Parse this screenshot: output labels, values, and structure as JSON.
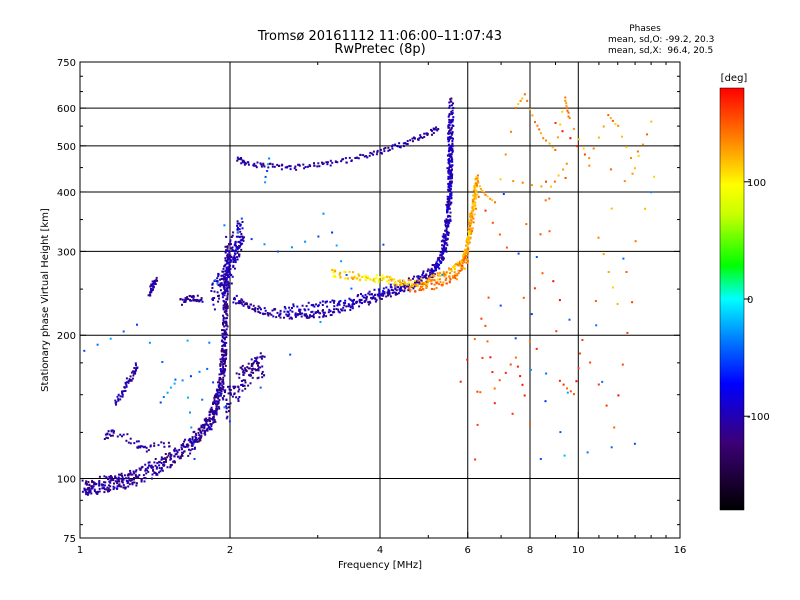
{
  "chart_data": {
    "type": "scatter",
    "title": "Tromsø 20161112 11:06:00–11:07:43",
    "subtitle": "RwPretec (8p)",
    "stats": {
      "heading": "Phases",
      "line_o": "mean, sd,O: -99.2, 20.3",
      "line_x": "mean, sd,X:  96.4, 20.5"
    },
    "xlabel": "Frequency [MHz]",
    "ylabel": "Stationary phase Virtual Height [km]",
    "xscale": "log",
    "yscale": "log",
    "xlim": [
      1,
      16
    ],
    "ylim": [
      75,
      750
    ],
    "x_ticks": [
      1,
      2,
      4,
      6,
      8,
      10,
      16
    ],
    "x_tick_labels": [
      "1",
      "2",
      "4",
      "6",
      "8",
      "10",
      "16"
    ],
    "x_grid": [
      1,
      2,
      4,
      6,
      8,
      10,
      16
    ],
    "y_ticks": [
      75,
      100,
      200,
      300,
      400,
      500,
      600,
      750
    ],
    "y_tick_labels": [
      "75",
      "100",
      "200",
      "300",
      "400",
      "500",
      "600",
      "750"
    ],
    "y_grid": [
      100,
      200,
      300,
      400,
      500,
      600
    ],
    "grid": true,
    "colorbar": {
      "label": "[deg]",
      "min": -180,
      "max": 180,
      "ticks": [
        100,
        0,
        -100
      ],
      "tick_labels": [
        "100",
        "0",
        "-100"
      ]
    },
    "traces": [
      {
        "points": [
          [
            1.02,
            96
          ],
          [
            1.05,
            95
          ],
          [
            1.1,
            97
          ],
          [
            1.15,
            98
          ],
          [
            1.2,
            99
          ],
          [
            1.25,
            99
          ],
          [
            1.3,
            101
          ],
          [
            1.38,
            104
          ],
          [
            1.45,
            107
          ],
          [
            1.52,
            110
          ],
          [
            1.6,
            114
          ],
          [
            1.67,
            118
          ],
          [
            1.72,
            122
          ],
          [
            1.78,
            127
          ],
          [
            1.82,
            132
          ],
          [
            1.86,
            138
          ],
          [
            1.88,
            144
          ],
          [
            1.9,
            150
          ],
          [
            1.92,
            158
          ],
          [
            1.93,
            168
          ],
          [
            1.94,
            178
          ],
          [
            1.95,
            190
          ],
          [
            1.95,
            205
          ],
          [
            1.96,
            222
          ],
          [
            1.96,
            240
          ],
          [
            1.97,
            262
          ],
          [
            1.98,
            285
          ],
          [
            1.98,
            310
          ]
        ],
        "phase": -110,
        "spread": [
          0.012,
          0.04
        ],
        "n": 7
      },
      {
        "points": [
          [
            1.95,
            140
          ],
          [
            2.02,
            150
          ],
          [
            2.1,
            160
          ],
          [
            2.18,
            166
          ],
          [
            2.25,
            170
          ],
          [
            2.32,
            174
          ]
        ],
        "phase": -112,
        "spread": [
          0.02,
          0.06
        ],
        "n": 6
      },
      {
        "points": [
          [
            1.86,
            240
          ],
          [
            1.9,
            252
          ],
          [
            1.95,
            262
          ],
          [
            2.0,
            275
          ],
          [
            2.02,
            290
          ],
          [
            2.05,
            305
          ],
          [
            2.08,
            322
          ],
          [
            2.12,
            335
          ]
        ],
        "phase": -100,
        "spread": [
          0.02,
          0.06
        ],
        "n": 6
      },
      {
        "points": [
          [
            1.13,
            122
          ],
          [
            1.17,
            125
          ],
          [
            1.3,
            118
          ],
          [
            1.35,
            116
          ],
          [
            1.5,
            118
          ]
        ],
        "phase": -110,
        "spread": [
          0.012,
          0.02
        ],
        "n": 3
      },
      {
        "points": [
          [
            1.18,
            145
          ],
          [
            1.22,
            152
          ],
          [
            1.25,
            160
          ],
          [
            1.28,
            166
          ],
          [
            1.3,
            172
          ]
        ],
        "phase": -105,
        "spread": [
          0.008,
          0.015
        ],
        "n": 3
      },
      {
        "points": [
          [
            1.38,
            245
          ],
          [
            1.4,
            255
          ],
          [
            1.42,
            260
          ]
        ],
        "phase": -108,
        "spread": [
          0.006,
          0.015
        ],
        "n": 4
      },
      {
        "points": [
          [
            1.6,
            235
          ],
          [
            1.65,
            238
          ],
          [
            1.7,
            240
          ],
          [
            1.75,
            238
          ]
        ],
        "phase": -110,
        "spread": [
          0.01,
          0.015
        ],
        "n": 3
      },
      {
        "points": [
          [
            2.05,
            238
          ],
          [
            2.15,
            232
          ],
          [
            2.3,
            226
          ],
          [
            2.5,
            222
          ],
          [
            2.7,
            220
          ],
          [
            2.9,
            221
          ],
          [
            3.1,
            223
          ],
          [
            3.4,
            228
          ],
          [
            3.7,
            234
          ],
          [
            4.0,
            241
          ],
          [
            4.3,
            247
          ],
          [
            4.6,
            253
          ],
          [
            4.9,
            260
          ],
          [
            5.1,
            270
          ],
          [
            5.25,
            285
          ],
          [
            5.35,
            305
          ],
          [
            5.45,
            330
          ],
          [
            5.5,
            360
          ],
          [
            5.52,
            390
          ],
          [
            5.53,
            420
          ],
          [
            5.54,
            450
          ],
          [
            5.55,
            480
          ],
          [
            5.55,
            510
          ],
          [
            5.56,
            560
          ],
          [
            5.56,
            620
          ]
        ],
        "phase": -105,
        "spread": [
          0.01,
          0.018
        ],
        "n": 5
      },
      {
        "points": [
          [
            2.6,
            228
          ],
          [
            2.9,
            230
          ],
          [
            3.2,
            233
          ],
          [
            3.5,
            237
          ],
          [
            3.8,
            242
          ],
          [
            4.1,
            248
          ],
          [
            4.4,
            254
          ],
          [
            4.8,
            263
          ],
          [
            5.1,
            272
          ],
          [
            5.3,
            288
          ],
          [
            5.4,
            310
          ],
          [
            5.45,
            340
          ],
          [
            5.5,
            380
          ],
          [
            5.52,
            420
          ],
          [
            5.53,
            470
          ],
          [
            5.54,
            520
          ],
          [
            5.55,
            570
          ]
        ],
        "phase": -95,
        "spread": [
          0.012,
          0.02
        ],
        "n": 4
      },
      {
        "points": [
          [
            3.2,
            270
          ],
          [
            3.5,
            267
          ],
          [
            3.8,
            264
          ],
          [
            4.1,
            262
          ],
          [
            4.4,
            258
          ]
        ],
        "phase": 110,
        "spread": [
          0.01,
          0.018
        ],
        "n": 5
      },
      {
        "points": [
          [
            4.4,
            255
          ],
          [
            4.8,
            258
          ],
          [
            5.1,
            262
          ],
          [
            5.4,
            268
          ],
          [
            5.7,
            278
          ],
          [
            5.9,
            292
          ],
          [
            6.0,
            308
          ],
          [
            6.05,
            325
          ],
          [
            6.1,
            345
          ],
          [
            6.15,
            365
          ],
          [
            6.2,
            385
          ],
          [
            6.22,
            405
          ],
          [
            6.25,
            425
          ]
        ],
        "phase": 125,
        "spread": [
          0.01,
          0.02
        ],
        "n": 5
      },
      {
        "points": [
          [
            4.6,
            250
          ],
          [
            5.0,
            252
          ],
          [
            5.4,
            258
          ],
          [
            5.7,
            266
          ],
          [
            5.9,
            280
          ],
          [
            6.0,
            298
          ]
        ],
        "phase": 140,
        "spread": [
          0.01,
          0.015
        ],
        "n": 4
      },
      {
        "points": [
          [
            2.08,
            470
          ],
          [
            2.15,
            460
          ],
          [
            2.3,
            455
          ],
          [
            2.5,
            452
          ],
          [
            2.7,
            450
          ],
          [
            2.95,
            455
          ],
          [
            3.2,
            460
          ],
          [
            3.5,
            468
          ],
          [
            3.8,
            478
          ],
          [
            4.1,
            490
          ],
          [
            4.4,
            502
          ],
          [
            4.7,
            515
          ],
          [
            5.0,
            530
          ],
          [
            5.2,
            545
          ]
        ],
        "phase": -108,
        "spread": [
          0.008,
          0.012
        ],
        "n": 3
      },
      {
        "points": [
          [
            6.35,
            410
          ],
          [
            6.5,
            395
          ],
          [
            6.8,
            380
          ],
          [
            7.5,
            600
          ],
          [
            7.8,
            640
          ],
          [
            8.2,
            560
          ],
          [
            8.5,
            520
          ],
          [
            9.0,
            490
          ],
          [
            9.4,
            630
          ],
          [
            9.5,
            600
          ],
          [
            9.6,
            570
          ],
          [
            10.5,
            470
          ],
          [
            11.5,
            580
          ],
          [
            12.0,
            550
          ],
          [
            13.0,
            450
          ],
          [
            14.0,
            560
          ],
          [
            11.0,
            320
          ],
          [
            12.0,
            232
          ],
          [
            14.2,
            430
          ],
          [
            9.5,
            460
          ],
          [
            8.8,
            410
          ],
          [
            7.4,
            420
          ]
        ],
        "phase": 130,
        "spread": [
          0.002,
          0.004
        ],
        "n": 1
      },
      {
        "points": [
          [
            6.2,
            110
          ],
          [
            6.5,
            210
          ],
          [
            6.8,
            155
          ],
          [
            7.5,
            180
          ],
          [
            7.8,
            150
          ],
          [
            8.6,
            420
          ],
          [
            9.2,
            160
          ],
          [
            9.8,
            150
          ],
          [
            10.2,
            195
          ],
          [
            11.8,
            128
          ],
          [
            12.8,
            235
          ],
          [
            6.6,
            240
          ],
          [
            5.8,
            160
          ],
          [
            8.0,
            130
          ],
          [
            9.0,
            560
          ],
          [
            10.3,
            480
          ],
          [
            7.2,
            305
          ],
          [
            6.3,
            390
          ]
        ],
        "phase": 160,
        "spread": [
          0.002,
          0.004
        ],
        "n": 1
      },
      {
        "points": [
          [
            1.02,
            185
          ],
          [
            1.3,
            210
          ],
          [
            1.65,
            148
          ],
          [
            1.7,
            110
          ],
          [
            1.95,
            340
          ],
          [
            2.5,
            300
          ],
          [
            3.2,
            330
          ],
          [
            3.5,
            250
          ],
          [
            2.0,
            132
          ],
          [
            1.8,
            170
          ],
          [
            1.55,
            158
          ],
          [
            1.45,
            145
          ],
          [
            2.4,
            470
          ],
          [
            2.35,
            420
          ],
          [
            7.0,
            230
          ],
          [
            9.2,
            125
          ],
          [
            7.1,
            395
          ],
          [
            13.0,
            118
          ],
          [
            8.4,
            110
          ],
          [
            14.0,
            400
          ]
        ],
        "phase": -40,
        "spread": [
          0.002,
          0.004
        ],
        "n": 1
      }
    ]
  }
}
